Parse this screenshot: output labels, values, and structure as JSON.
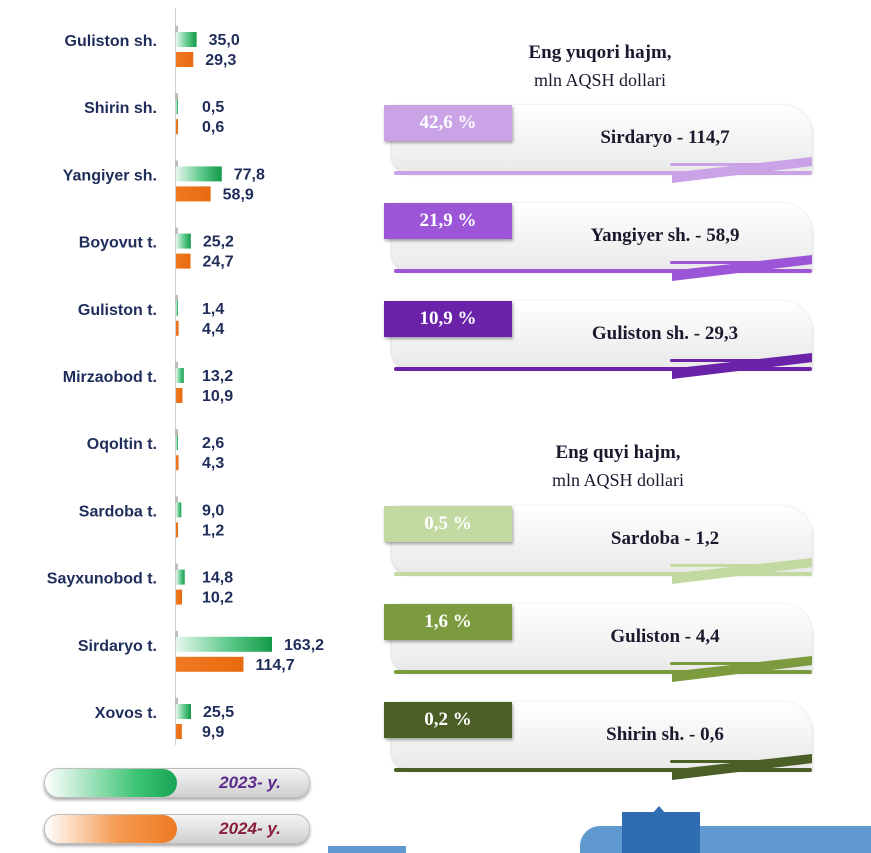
{
  "chart_data": [
    {
      "type": "bar",
      "orientation": "horizontal",
      "categories": [
        "Guliston sh.",
        "Shirin sh.",
        "Yangiyer sh.",
        "Boyovut t.",
        "Guliston t.",
        "Mirzaobod t.",
        "Oqoltin t.",
        "Sardoba t.",
        "Sayxunobod t.",
        "Sirdaryo t.",
        "Xovos t."
      ],
      "series": [
        {
          "name": "2023- y.",
          "color": "#1fb35a",
          "values": [
            35.0,
            0.5,
            77.8,
            25.2,
            1.4,
            13.2,
            2.6,
            9.0,
            14.8,
            163.2,
            25.5
          ],
          "labels": [
            "35,0",
            "0,5",
            "77,8",
            "25,2",
            "1,4",
            "13,2",
            "2,6",
            "9,0",
            "14,8",
            "163,2",
            "25,5"
          ]
        },
        {
          "name": "2024- y.",
          "color": "#f07a20",
          "values": [
            29.3,
            0.6,
            58.9,
            24.7,
            4.4,
            10.9,
            4.3,
            1.2,
            10.2,
            114.7,
            9.9
          ],
          "labels": [
            "29,3",
            "0,6",
            "58,9",
            "24,7",
            "4,4",
            "10,9",
            "4,3",
            "1,2",
            "10,2",
            "114,7",
            "9,9"
          ]
        }
      ],
      "legend": "bottom-left"
    },
    {
      "type": "table",
      "title": "Eng yuqori hajm,",
      "subtitle": "mln AQSH dollari",
      "rows": [
        {
          "percent": "42,6 %",
          "label": "Sirdaryo - 114,7"
        },
        {
          "percent": "21,9 %",
          "label": "Yangiyer sh. - 58,9"
        },
        {
          "percent": "10,9 %",
          "label": "Guliston sh.  - 29,3"
        }
      ]
    },
    {
      "type": "table",
      "title": "Eng quyi hajm,",
      "subtitle": "mln AQSH dollari",
      "rows": [
        {
          "percent": "0,5 %",
          "label": "Sardoba -  1,2"
        },
        {
          "percent": "1,6 %",
          "label": "Guliston - 4,4"
        },
        {
          "percent": "0,2 %",
          "label": "Shirin sh. - 0,6"
        }
      ]
    }
  ],
  "legend": {
    "y2023": {
      "label": "2023- y.",
      "color": "#5b2b8a",
      "fill": "#1fb35a"
    },
    "y2024": {
      "label": "2024- y.",
      "color": "#8a1f3a",
      "fill": "#f07a20"
    }
  },
  "top_panel": {
    "title": "Eng yuqori hajm,",
    "subtitle": "mln AQSH dollari",
    "colors": [
      "#c9a3e6",
      "#9b55d6",
      "#6a23a8"
    ],
    "cards": [
      {
        "percent": "42,6 %",
        "label": "Sirdaryo - 114,7"
      },
      {
        "percent": "21,9 %",
        "label": "Yangiyer sh. - 58,9"
      },
      {
        "percent": "10,9 %",
        "label": "Guliston sh.  - 29,3"
      }
    ]
  },
  "bottom_panel": {
    "title": "Eng quyi hajm,",
    "subtitle": "mln AQSH dollari",
    "colors": [
      "#c3d9a2",
      "#7c9a3e",
      "#4b5e26"
    ],
    "cards": [
      {
        "percent": "0,5 %",
        "label": "Sardoba -  1,2"
      },
      {
        "percent": "1,6 %",
        "label": "Guliston - 4,4"
      },
      {
        "percent": "0,2 %",
        "label": "Shirin sh. - 0,6"
      }
    ]
  }
}
